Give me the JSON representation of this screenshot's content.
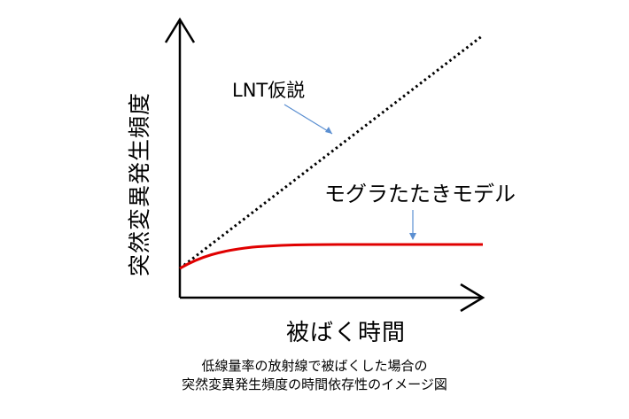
{
  "diagram": {
    "y_axis_label": "突然変異発生頻度",
    "x_axis_label": "被ばく時間",
    "lnt_label": "LNT仮説",
    "mole_label": "モグラたたきモデル",
    "caption_line1": "低線量率の放射線で被ばくした場合の",
    "caption_line2": "突然変異発生頻度の時間依存性のイメージ図"
  },
  "colors": {
    "axis": "#000000",
    "lnt_line": "#000000",
    "mole_curve": "#e00000",
    "pointer": "#5b8fd1"
  }
}
